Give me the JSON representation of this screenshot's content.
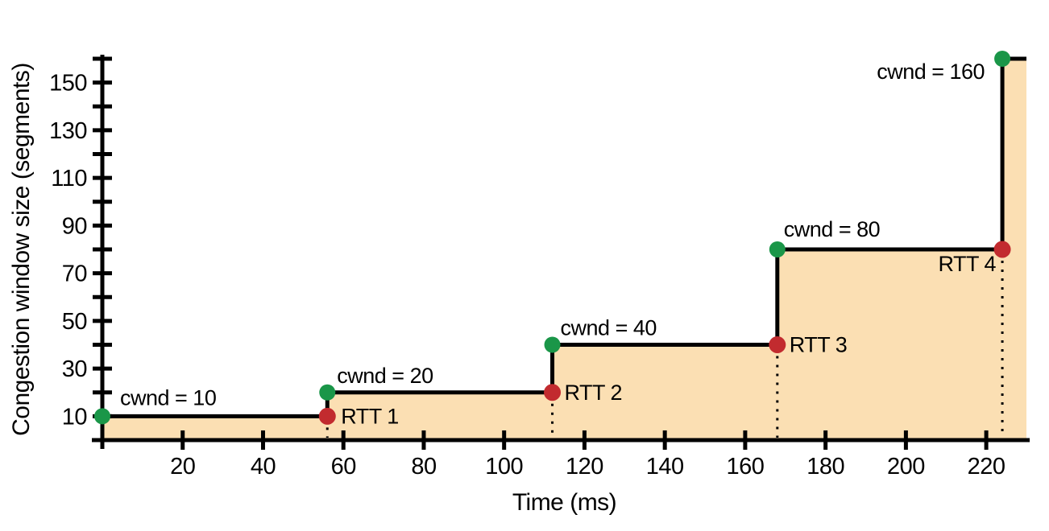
{
  "page": {
    "background": "#ffffff"
  },
  "colors": {
    "area_fill": "#FBDFB3",
    "step_line": "#000000",
    "axis": "#000000",
    "cwnd_marker_green": "#1A9648",
    "rtt_marker_red": "#C22B2F",
    "text": "#000000",
    "dropline": "#000000"
  },
  "chart_data": {
    "type": "area",
    "step_shape": "post",
    "title": "",
    "xlabel": "Time (ms)",
    "ylabel": "Congestion window size (segments)",
    "xlim": [
      0,
      230
    ],
    "ylim": [
      0,
      160
    ],
    "x_ticks": [
      20,
      40,
      60,
      80,
      100,
      120,
      140,
      160,
      180,
      200,
      220
    ],
    "y_ticks": [
      10,
      20,
      30,
      40,
      50,
      60,
      70,
      80,
      90,
      100,
      110,
      120,
      130,
      140,
      150,
      160
    ],
    "y_tick_labels_shown": [
      10,
      30,
      50,
      70,
      90,
      110,
      130,
      150
    ],
    "grid": false,
    "legend": false,
    "series": [
      {
        "name": "congestion-window",
        "points": [
          [
            0,
            10
          ],
          [
            56,
            10
          ],
          [
            56,
            20
          ],
          [
            112,
            20
          ],
          [
            112,
            40
          ],
          [
            168,
            40
          ],
          [
            168,
            80
          ],
          [
            224,
            80
          ],
          [
            224,
            160
          ],
          [
            230,
            160
          ]
        ]
      }
    ],
    "cwnd_markers": [
      {
        "t": 0,
        "cwnd": 10,
        "label": "cwnd = 10"
      },
      {
        "t": 56,
        "cwnd": 20,
        "label": "cwnd = 20"
      },
      {
        "t": 112,
        "cwnd": 40,
        "label": "cwnd = 40"
      },
      {
        "t": 168,
        "cwnd": 80,
        "label": "cwnd = 80"
      },
      {
        "t": 224,
        "cwnd": 160,
        "label": "cwnd = 160"
      }
    ],
    "rtt_markers": [
      {
        "t": 56,
        "cwnd": 10,
        "label": "RTT 1"
      },
      {
        "t": 112,
        "cwnd": 20,
        "label": "RTT 2"
      },
      {
        "t": 168,
        "cwnd": 40,
        "label": "RTT 3"
      },
      {
        "t": 224,
        "cwnd": 80,
        "label": "RTT 4"
      }
    ],
    "rtt_droplines": true,
    "area_filled": true
  }
}
